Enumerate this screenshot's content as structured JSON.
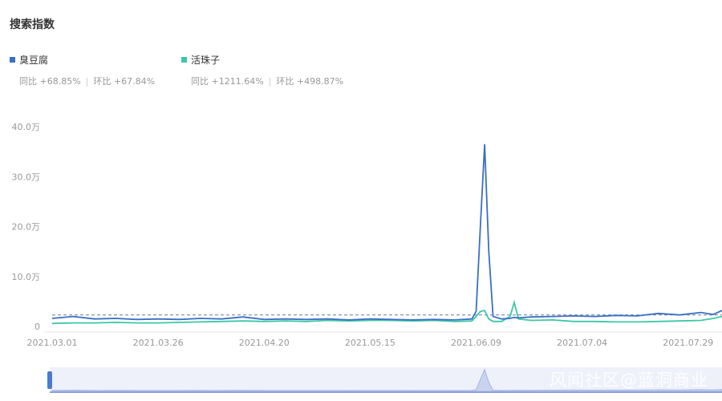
{
  "title": "搜索指数",
  "legend": [
    {
      "name": "臭豆腐",
      "color": "#3a6fc4",
      "yoy_label": "同比",
      "yoy": "+68.85%",
      "mom_label": "环比",
      "mom": "+67.84%"
    },
    {
      "name": "活珠子",
      "color": "#3cc7a6",
      "yoy_label": "同比",
      "yoy": "+1211.64%",
      "mom_label": "环比",
      "mom": "+498.87%"
    }
  ],
  "watermark": "风闻社区@蓝洞商业",
  "chart_data": {
    "type": "line",
    "y_tick_labels": [
      "0",
      "10.0万",
      "20.0万",
      "30.0万",
      "40.0万"
    ],
    "y_ticks": [
      0,
      10,
      20,
      30,
      40
    ],
    "ylim": [
      0,
      40
    ],
    "unit": "万",
    "x_tick_labels": [
      "2021.03.01",
      "2021.03.26",
      "2021.04.20",
      "2021.05.15",
      "2021.06.09",
      "2021.07.04",
      "2021.07.29"
    ],
    "xlim": [
      "2021.03.01",
      "2021.08.06"
    ],
    "average_line": 2.3,
    "grid": false,
    "x": [
      "2021.03.01",
      "2021.03.06",
      "2021.03.11",
      "2021.03.16",
      "2021.03.21",
      "2021.03.26",
      "2021.03.31",
      "2021.04.05",
      "2021.04.10",
      "2021.04.15",
      "2021.04.20",
      "2021.04.25",
      "2021.04.30",
      "2021.05.05",
      "2021.05.10",
      "2021.05.15",
      "2021.05.20",
      "2021.05.25",
      "2021.05.30",
      "2021.06.04",
      "2021.06.08",
      "2021.06.09",
      "2021.06.10",
      "2021.06.11",
      "2021.06.12",
      "2021.06.13",
      "2021.06.15",
      "2021.06.17",
      "2021.06.18",
      "2021.06.19",
      "2021.06.22",
      "2021.06.27",
      "2021.07.02",
      "2021.07.07",
      "2021.07.12",
      "2021.07.17",
      "2021.07.22",
      "2021.07.27",
      "2021.08.01",
      "2021.08.04",
      "2021.08.06"
    ],
    "series": [
      {
        "name": "臭豆腐",
        "color": "#3a6fc4",
        "values": [
          1.6,
          2.0,
          1.5,
          1.6,
          1.4,
          1.5,
          1.4,
          1.6,
          1.5,
          1.9,
          1.4,
          1.5,
          1.4,
          1.5,
          1.3,
          1.5,
          1.4,
          1.3,
          1.4,
          1.3,
          1.5,
          3.0,
          20,
          36.5,
          15,
          2.0,
          1.5,
          1.6,
          1.8,
          1.7,
          1.9,
          2.0,
          2.1,
          2.0,
          2.2,
          2.1,
          2.6,
          2.3,
          2.8,
          2.4,
          3.2
        ]
      },
      {
        "name": "活珠子",
        "color": "#3cc7a6",
        "values": [
          0.6,
          0.7,
          0.7,
          0.8,
          0.7,
          0.7,
          0.8,
          0.9,
          1.0,
          1.1,
          1.0,
          1.1,
          1.0,
          1.2,
          1.1,
          1.2,
          1.2,
          1.1,
          1.2,
          1.0,
          1.1,
          2.0,
          3.0,
          3.2,
          1.5,
          1.0,
          1.0,
          2.0,
          4.8,
          1.5,
          1.2,
          1.3,
          1.0,
          1.0,
          0.9,
          0.9,
          1.0,
          1.1,
          1.2,
          1.6,
          2.0
        ]
      }
    ]
  }
}
